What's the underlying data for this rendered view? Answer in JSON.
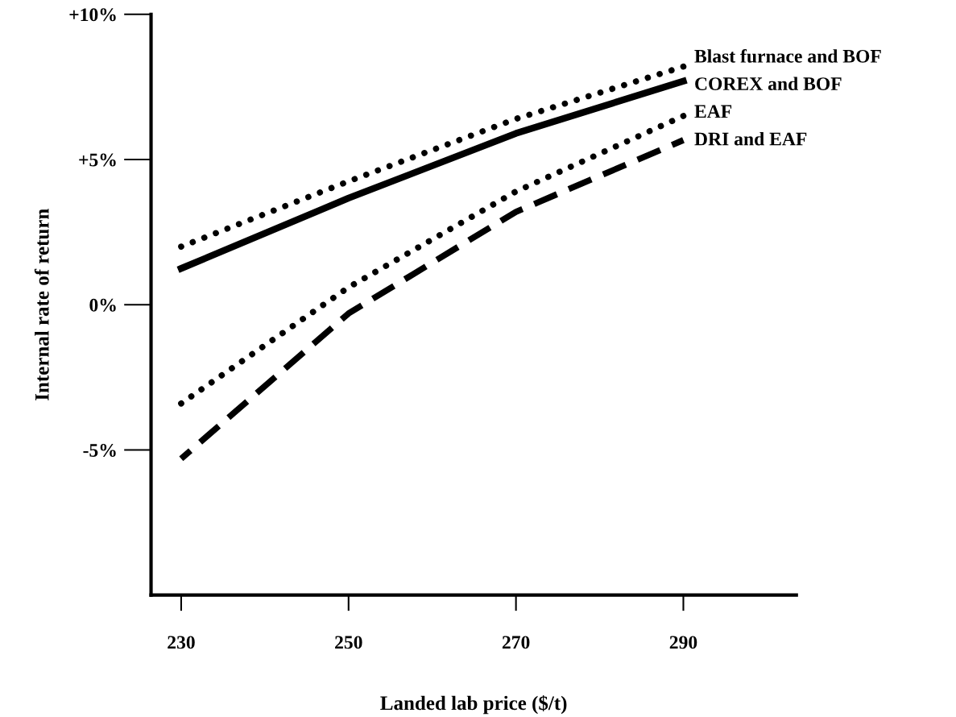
{
  "chart_data": {
    "type": "line",
    "xlabel": "Landed lab price ($/t)",
    "ylabel": "Internal rate of return",
    "x": [
      230,
      250,
      270,
      290
    ],
    "xlim": [
      226.4,
      303.5
    ],
    "xticks": [
      230,
      250,
      270,
      290
    ],
    "ylim": [
      -10,
      10
    ],
    "yticks": [
      {
        "value": 10,
        "label": "+10%"
      },
      {
        "value": 5,
        "label": "+5%"
      },
      {
        "value": 0,
        "label": "0%"
      },
      {
        "value": -5,
        "label": "-5%"
      }
    ],
    "grid": false,
    "legend": false,
    "marker": "none",
    "series": [
      {
        "name": "Blast furnace and BOF",
        "color": "#000000",
        "line_style": "dotted",
        "values": [
          2.0,
          4.25,
          6.4,
          8.2
        ]
      },
      {
        "name": "COREX and BOF",
        "color": "#000000",
        "line_style": "solid",
        "values": [
          1.25,
          3.67,
          5.9,
          7.7
        ]
      },
      {
        "name": "EAF",
        "color": "#000000",
        "line_style": "dotted",
        "values": [
          -3.4,
          0.6,
          3.9,
          6.5
        ]
      },
      {
        "name": "DRI and EAF",
        "color": "#000000",
        "line_style": "dashed",
        "values": [
          -5.3,
          -0.3,
          3.2,
          5.67
        ]
      }
    ]
  }
}
